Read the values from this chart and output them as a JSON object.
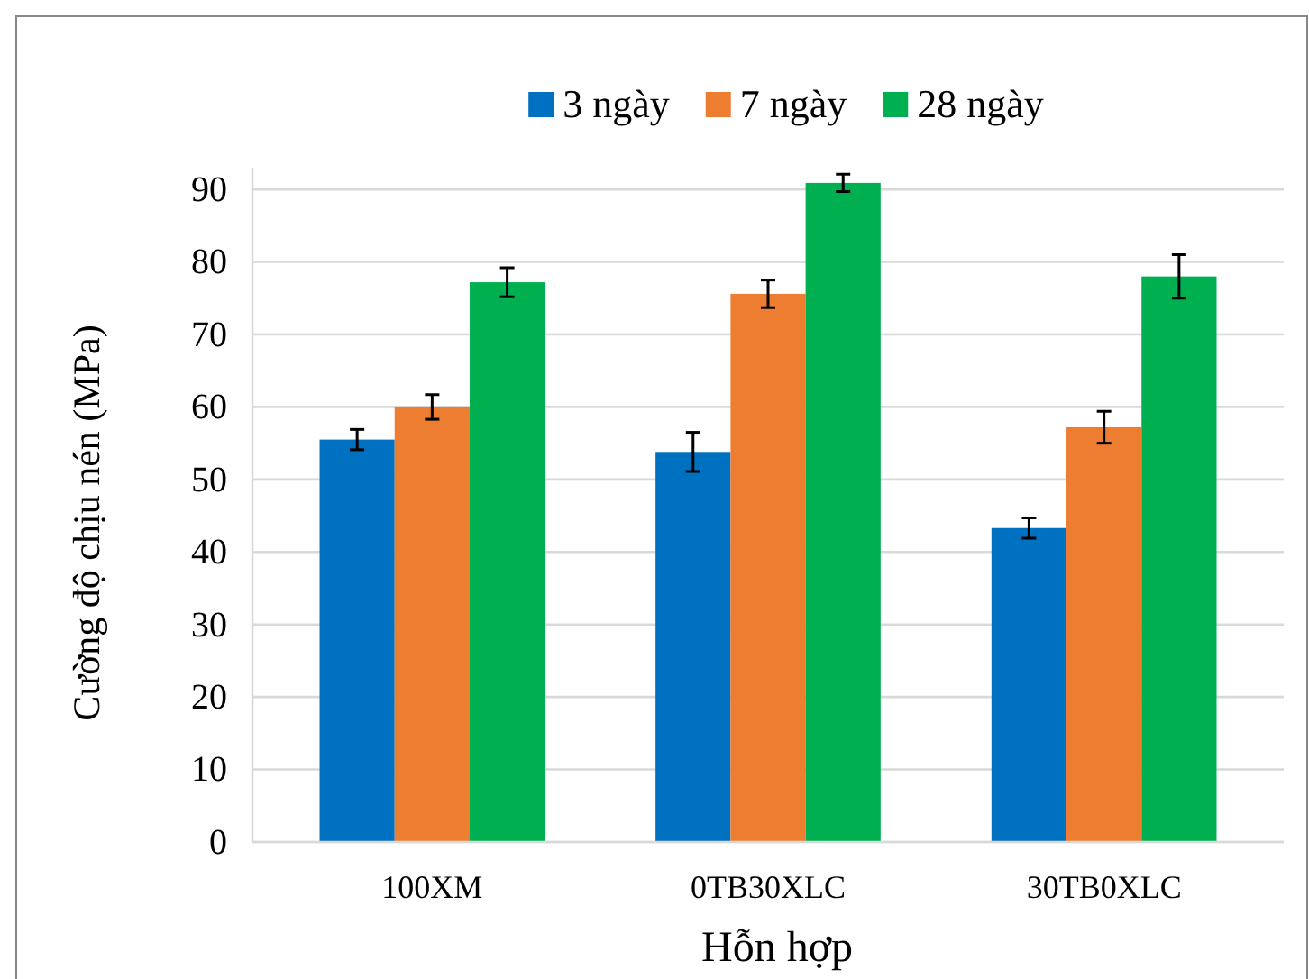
{
  "chart_data": {
    "type": "bar",
    "xlabel": "Hỗn hợp",
    "ylabel": "Cường độ chịu nén (MPa)",
    "categories": [
      "100XM",
      "0TB30XLC",
      "30TB0XLC"
    ],
    "series": [
      {
        "name": "3 ngày",
        "color": "#0070c0",
        "values": [
          55.5,
          53.8,
          43.3
        ],
        "errors": [
          1.4,
          2.7,
          1.4
        ]
      },
      {
        "name": "7 ngày",
        "color": "#ed7d31",
        "values": [
          60,
          75.6,
          57.2
        ],
        "errors": [
          1.7,
          1.9,
          2.2
        ]
      },
      {
        "name": "28 ngày",
        "color": "#00b050",
        "values": [
          77.2,
          90.9,
          78
        ],
        "errors": [
          2,
          1.2,
          3
        ]
      }
    ],
    "ylim": [
      0,
      93
    ],
    "yticks": [
      0,
      10,
      20,
      30,
      40,
      50,
      60,
      70,
      80,
      90
    ],
    "grid": "y",
    "legend": "top"
  }
}
